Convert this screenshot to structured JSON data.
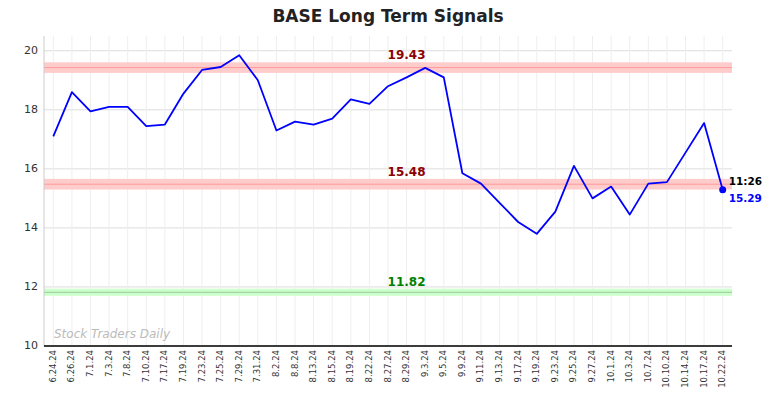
{
  "chart_data": {
    "type": "line",
    "title": "BASE Long Term Signals",
    "categories": [
      "6.24.24",
      "6.26.24",
      "7.1.24",
      "7.3.24",
      "7.8.24",
      "7.10.24",
      "7.17.24",
      "7.19.24",
      "7.23.24",
      "7.25.24",
      "7.29.24",
      "7.31.24",
      "8.2.24",
      "8.8.24",
      "8.13.24",
      "8.15.24",
      "8.19.24",
      "8.22.24",
      "8.27.24",
      "8.29.24",
      "9.3.24",
      "9.5.24",
      "9.9.24",
      "9.11.24",
      "9.13.24",
      "9.17.24",
      "9.19.24",
      "9.23.24",
      "9.25.24",
      "9.27.24",
      "10.1.24",
      "10.3.24",
      "10.7.24",
      "10.10.24",
      "10.14.24",
      "10.17.24",
      "10.22.24"
    ],
    "values": [
      17.1,
      18.6,
      17.95,
      18.1,
      18.1,
      17.45,
      17.5,
      18.55,
      19.35,
      19.45,
      19.85,
      19.0,
      17.3,
      17.6,
      17.5,
      17.7,
      18.35,
      18.2,
      18.8,
      19.1,
      19.42,
      19.1,
      15.85,
      15.5,
      14.85,
      14.2,
      13.8,
      14.55,
      16.1,
      15.0,
      15.4,
      14.45,
      15.5,
      15.55,
      16.55,
      17.55,
      15.29
    ],
    "color": "blue",
    "ylim": [
      10,
      20.5
    ],
    "yticks": [
      10,
      12,
      14,
      16,
      18,
      20
    ],
    "grid": true,
    "reference_lines": [
      {
        "value": 19.43,
        "band_half_width": 0.18,
        "color": "#ff9999",
        "band_color": "#ffcccc",
        "label": "19.43",
        "label_color": "darkred"
      },
      {
        "value": 15.48,
        "band_half_width": 0.18,
        "color": "#ff9999",
        "band_color": "#ffcccc",
        "label": "15.48",
        "label_color": "darkred"
      },
      {
        "value": 11.82,
        "band_half_width": 0.12,
        "color": "#99cc99",
        "band_color": "#ccffcc",
        "label": "11.82",
        "label_color": "green"
      }
    ],
    "last_point": {
      "value": 15.29,
      "color": "blue",
      "time_label": "11:26",
      "value_label": "15.29"
    },
    "watermark": {
      "text": "Stock Traders Daily",
      "color": "#bbbbbb"
    }
  }
}
